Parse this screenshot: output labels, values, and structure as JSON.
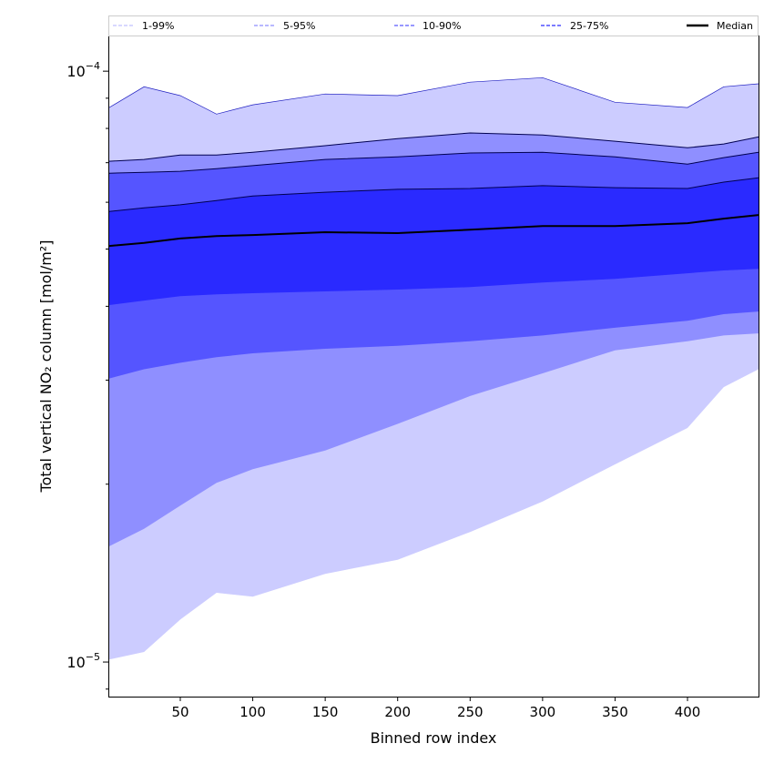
{
  "chart_data": {
    "type": "area",
    "xlabel": "Binned row index",
    "ylabel": "Total vertical NO₂ column [mol/m²]",
    "yscale": "log",
    "xlim": [
      1,
      449
    ],
    "ylim": [
      8.74e-06,
      0.0001145
    ],
    "xticks": [
      50,
      100,
      150,
      200,
      250,
      300,
      350,
      400
    ],
    "xtick_labels": [
      "50",
      "100",
      "150",
      "200",
      "250",
      "300",
      "350",
      "400"
    ],
    "yticks": [
      {
        "value": 0.0001,
        "base": "10",
        "exp": "−4"
      },
      {
        "value": 1e-05,
        "base": "10",
        "exp": "−5"
      }
    ],
    "legend": {
      "placement": "top (above plot, full width)",
      "entries": [
        {
          "label": "1-99%",
          "color": "#ccccff",
          "style": "dashed"
        },
        {
          "label": "5-95%",
          "color": "#a0a0ff",
          "style": "dashed"
        },
        {
          "label": "10-90%",
          "color": "#7777ff",
          "style": "dashed"
        },
        {
          "label": "25-75%",
          "color": "#5050ff",
          "style": "dashed"
        },
        {
          "label": "Median",
          "color": "#000000",
          "style": "solid"
        }
      ]
    },
    "x": [
      1,
      25,
      50,
      75,
      100,
      150,
      200,
      250,
      300,
      350,
      400,
      425,
      449
    ],
    "bands": [
      {
        "name": "1-99%",
        "fill": "#ccccff",
        "lower": [
          1.01e-05,
          1.04e-05,
          1.18e-05,
          1.31e-05,
          1.29e-05,
          1.41e-05,
          1.49e-05,
          1.66e-05,
          1.87e-05,
          2.16e-05,
          2.49e-05,
          2.92e-05,
          3.13e-05
        ],
        "upper": [
          8.68e-05,
          9.41e-05,
          9.09e-05,
          8.46e-05,
          8.77e-05,
          9.15e-05,
          9.09e-05,
          9.58e-05,
          9.75e-05,
          8.86e-05,
          8.68e-05,
          9.41e-05,
          9.52e-05
        ]
      },
      {
        "name": "5-95%",
        "fill": "#8f8fff",
        "lower": [
          1.57e-05,
          1.68e-05,
          1.84e-05,
          2.01e-05,
          2.12e-05,
          2.28e-05,
          2.53e-05,
          2.82e-05,
          3.08e-05,
          3.37e-05,
          3.49e-05,
          3.57e-05,
          3.6e-05
        ],
        "upper": [
          7.04e-05,
          7.09e-05,
          7.21e-05,
          7.21e-05,
          7.29e-05,
          7.48e-05,
          7.69e-05,
          7.86e-05,
          7.8e-05,
          7.61e-05,
          7.42e-05,
          7.53e-05,
          7.74e-05
        ]
      },
      {
        "name": "10-90%",
        "fill": "#5555ff",
        "lower": [
          3.02e-05,
          3.13e-05,
          3.21e-05,
          3.28e-05,
          3.33e-05,
          3.39e-05,
          3.43e-05,
          3.49e-05,
          3.57e-05,
          3.68e-05,
          3.78e-05,
          3.88e-05,
          3.92e-05
        ],
        "upper": [
          6.72e-05,
          6.74e-05,
          6.77e-05,
          6.84e-05,
          6.92e-05,
          7.09e-05,
          7.16e-05,
          7.27e-05,
          7.29e-05,
          7.16e-05,
          6.96e-05,
          7.14e-05,
          7.29e-05
        ]
      },
      {
        "name": "25-75%",
        "fill": "#2a2aff",
        "lower": [
          4.02e-05,
          4.09e-05,
          4.16e-05,
          4.19e-05,
          4.21e-05,
          4.24e-05,
          4.27e-05,
          4.31e-05,
          4.39e-05,
          4.45e-05,
          4.55e-05,
          4.6e-05,
          4.63e-05
        ],
        "upper": [
          5.79e-05,
          5.87e-05,
          5.94e-05,
          6.04e-05,
          6.15e-05,
          6.24e-05,
          6.31e-05,
          6.33e-05,
          6.4e-05,
          6.35e-05,
          6.33e-05,
          6.49e-05,
          6.6e-05
        ]
      }
    ],
    "median": [
      5.06e-05,
      5.12e-05,
      5.21e-05,
      5.26e-05,
      5.28e-05,
      5.34e-05,
      5.32e-05,
      5.39e-05,
      5.47e-05,
      5.47e-05,
      5.53e-05,
      5.63e-05,
      5.71e-05
    ]
  }
}
